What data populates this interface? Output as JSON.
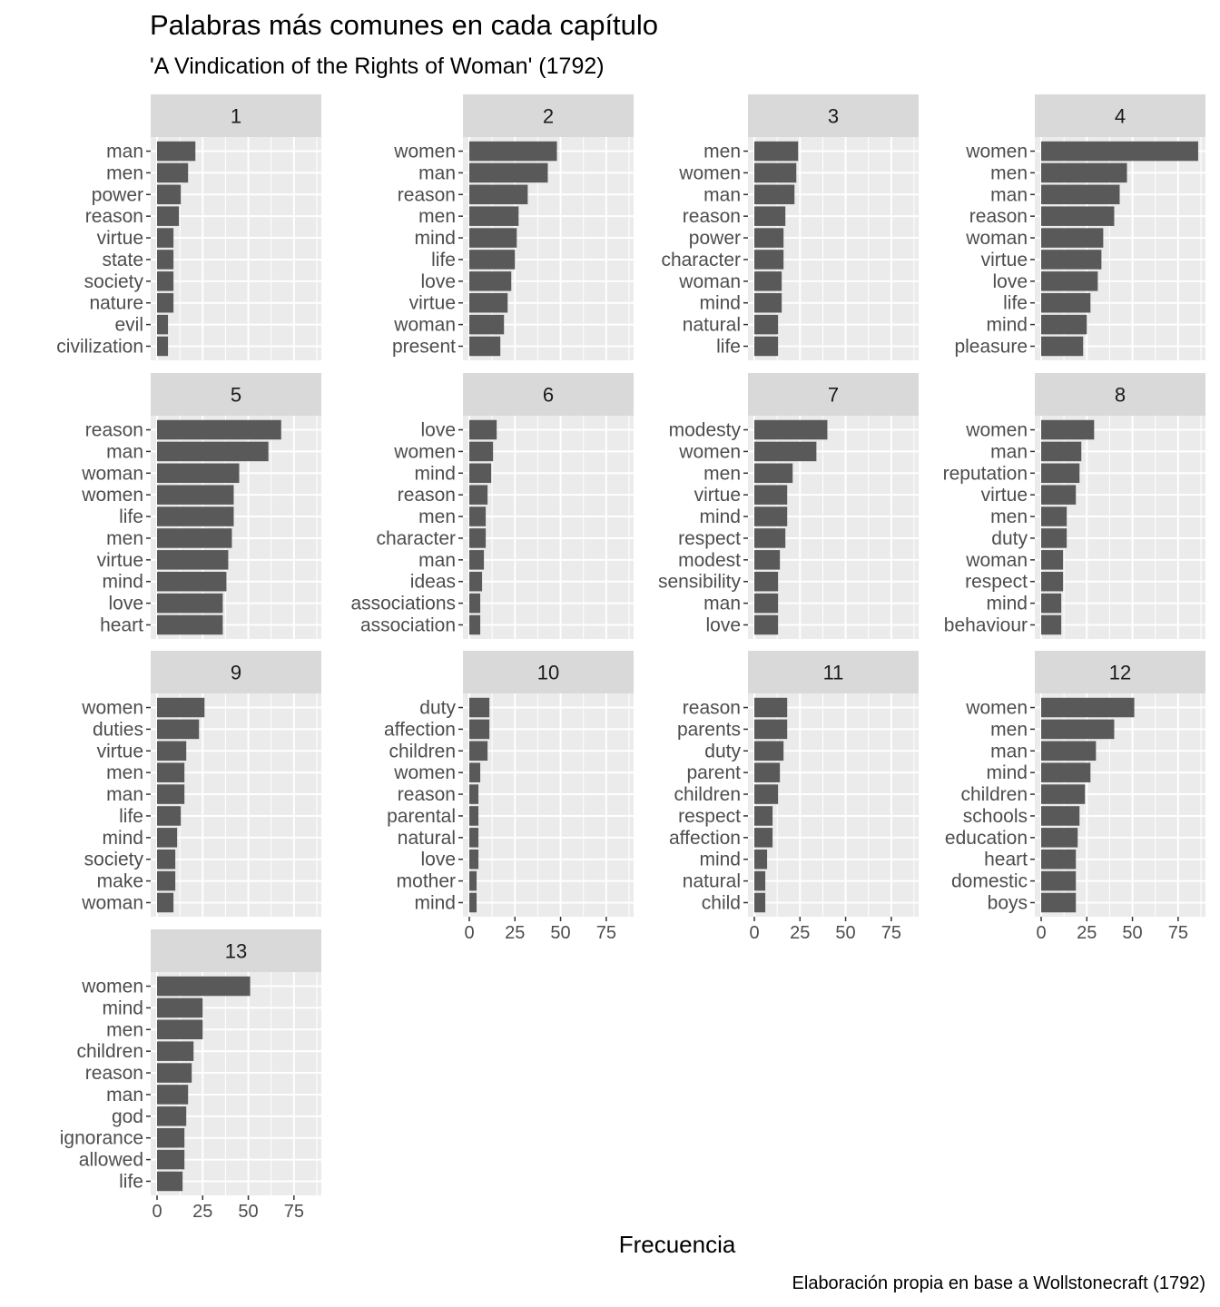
{
  "title": "Palabras más comunes en cada capítulo",
  "subtitle": "'A Vindication of the Rights of Woman' (1792)",
  "xlabel": "Frecuencia",
  "caption": "Elaboración propia en base a Wollstonecraft (1792)",
  "colors": {
    "bar": "#595959",
    "panel_bg": "#ebebeb",
    "strip_bg": "#d9d9d9",
    "grid": "#ffffff",
    "axis_text": "#4d4d4d"
  },
  "chart_data": {
    "type": "bar",
    "orientation": "horizontal",
    "facet_by": "chapter",
    "xlim": [
      0,
      90
    ],
    "x_ticks": [
      0,
      25,
      50,
      75
    ],
    "grid": true,
    "facets": [
      {
        "label": "1",
        "words": [
          "man",
          "men",
          "power",
          "reason",
          "virtue",
          "state",
          "society",
          "nature",
          "evil",
          "civilization"
        ],
        "values": [
          21,
          17,
          13,
          12,
          9,
          9,
          9,
          9,
          6,
          6
        ]
      },
      {
        "label": "2",
        "words": [
          "women",
          "man",
          "reason",
          "men",
          "mind",
          "life",
          "love",
          "virtue",
          "woman",
          "present"
        ],
        "values": [
          48,
          43,
          32,
          27,
          26,
          25,
          23,
          21,
          19,
          17
        ]
      },
      {
        "label": "3",
        "words": [
          "men",
          "women",
          "man",
          "reason",
          "power",
          "character",
          "woman",
          "mind",
          "natural",
          "life"
        ],
        "values": [
          24,
          23,
          22,
          17,
          16,
          16,
          15,
          15,
          13,
          13
        ]
      },
      {
        "label": "4",
        "words": [
          "women",
          "men",
          "man",
          "reason",
          "woman",
          "virtue",
          "love",
          "life",
          "mind",
          "pleasure"
        ],
        "values": [
          86,
          47,
          43,
          40,
          34,
          33,
          31,
          27,
          25,
          23
        ]
      },
      {
        "label": "5",
        "words": [
          "reason",
          "man",
          "woman",
          "women",
          "life",
          "men",
          "virtue",
          "mind",
          "love",
          "heart"
        ],
        "values": [
          68,
          61,
          45,
          42,
          42,
          41,
          39,
          38,
          36,
          36
        ]
      },
      {
        "label": "6",
        "words": [
          "love",
          "women",
          "mind",
          "reason",
          "men",
          "character",
          "man",
          "ideas",
          "associations",
          "association"
        ],
        "values": [
          15,
          13,
          12,
          10,
          9,
          9,
          8,
          7,
          6,
          6
        ]
      },
      {
        "label": "7",
        "words": [
          "modesty",
          "women",
          "men",
          "virtue",
          "mind",
          "respect",
          "modest",
          "sensibility",
          "man",
          "love"
        ],
        "values": [
          40,
          34,
          21,
          18,
          18,
          17,
          14,
          13,
          13,
          13
        ]
      },
      {
        "label": "8",
        "words": [
          "women",
          "man",
          "reputation",
          "virtue",
          "men",
          "duty",
          "woman",
          "respect",
          "mind",
          "behaviour"
        ],
        "values": [
          29,
          22,
          21,
          19,
          14,
          14,
          12,
          12,
          11,
          11
        ]
      },
      {
        "label": "9",
        "words": [
          "women",
          "duties",
          "virtue",
          "men",
          "man",
          "life",
          "mind",
          "society",
          "make",
          "woman"
        ],
        "values": [
          26,
          23,
          16,
          15,
          15,
          13,
          11,
          10,
          10,
          9
        ]
      },
      {
        "label": "10",
        "words": [
          "duty",
          "affection",
          "children",
          "women",
          "reason",
          "parental",
          "natural",
          "love",
          "mother",
          "mind"
        ],
        "values": [
          11,
          11,
          10,
          6,
          5,
          5,
          5,
          5,
          4,
          4
        ]
      },
      {
        "label": "11",
        "words": [
          "reason",
          "parents",
          "duty",
          "parent",
          "children",
          "respect",
          "affection",
          "mind",
          "natural",
          "child"
        ],
        "values": [
          18,
          18,
          16,
          14,
          13,
          10,
          10,
          7,
          6,
          6
        ]
      },
      {
        "label": "12",
        "words": [
          "women",
          "men",
          "man",
          "mind",
          "children",
          "schools",
          "education",
          "heart",
          "domestic",
          "boys"
        ],
        "values": [
          51,
          40,
          30,
          27,
          24,
          21,
          20,
          19,
          19,
          19
        ]
      },
      {
        "label": "13",
        "words": [
          "women",
          "mind",
          "men",
          "children",
          "reason",
          "man",
          "god",
          "ignorance",
          "allowed",
          "life"
        ],
        "values": [
          51,
          25,
          25,
          20,
          19,
          17,
          16,
          15,
          15,
          14
        ]
      }
    ]
  }
}
